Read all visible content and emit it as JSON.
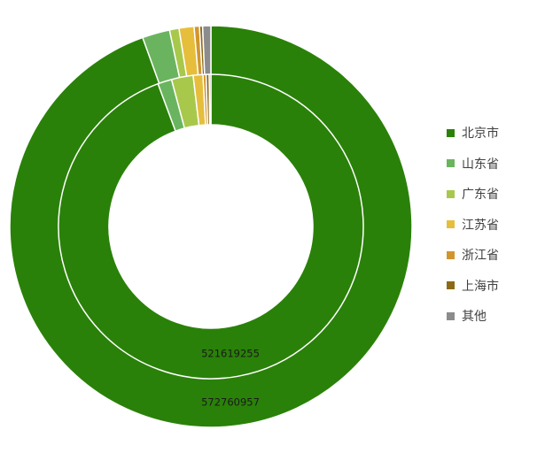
{
  "chart_data": {
    "type": "pie",
    "subtype": "doughnut",
    "title": "",
    "legend_position": "right",
    "categories": [
      "北京市",
      "山东省",
      "广东省",
      "江苏省",
      "浙江省",
      "上海市",
      "其他"
    ],
    "colors": [
      "#2A8109",
      "#6BB45F",
      "#A8C84C",
      "#E6BE3C",
      "#D2952D",
      "#8C6A14",
      "#8C8C8C"
    ],
    "series": [
      {
        "ring": "outer",
        "values": [
          572760957,
          13400000,
          4600000,
          7300000,
          2600000,
          1500000,
          4000000
        ],
        "data_labels": [
          "572760957"
        ]
      },
      {
        "ring": "inner",
        "values": [
          521619255,
          8200000,
          12700000,
          5700000,
          1800000,
          1800000,
          1000000
        ],
        "data_labels": [
          "521619255"
        ]
      }
    ]
  }
}
